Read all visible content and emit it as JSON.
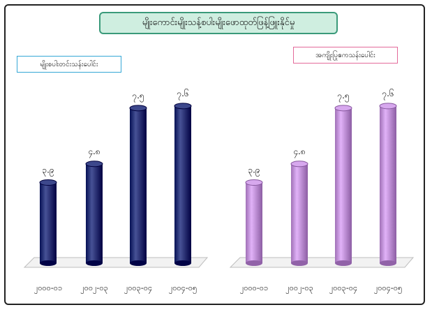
{
  "title": "မျိုးကောင်းမျိုးသန့်စပါးမျိုးဖောထုတ်ဖြန့်ဖြူးနိုင်မှု",
  "chart_data": [
    {
      "type": "bar",
      "legend": "မျိုးစပါးတင်းသန်းပေါင်း",
      "categories": [
        "၂၀၀၀-၀၁",
        "၂၀၀၂-၀၃",
        "၂၀၀၃-၀၄",
        "၂၀၀၄-၀၅"
      ],
      "values": [
        3.9,
        4.8,
        7.5,
        7.6
      ],
      "value_labels": [
        "၃.၉",
        "၄.၈",
        "၇.၅",
        "၇.၆"
      ],
      "ylim": [
        0,
        8
      ],
      "color": "#1f2a6e"
    },
    {
      "type": "bar",
      "legend": "အကျိုးပြုဧကသန်းပေါင်း",
      "categories": [
        "၂၀၀၀-၀၁",
        "၂၀၀၂-၀၃",
        "၂၀၀၃-၀၄",
        "၂၀၀၄-၀၅"
      ],
      "values": [
        3.9,
        4.8,
        7.5,
        7.6
      ],
      "value_labels": [
        "၃.၉",
        "၄.၈",
        "၇.၅",
        "၇.၆"
      ],
      "ylim": [
        0,
        8
      ],
      "color": "#b98ad0"
    }
  ]
}
